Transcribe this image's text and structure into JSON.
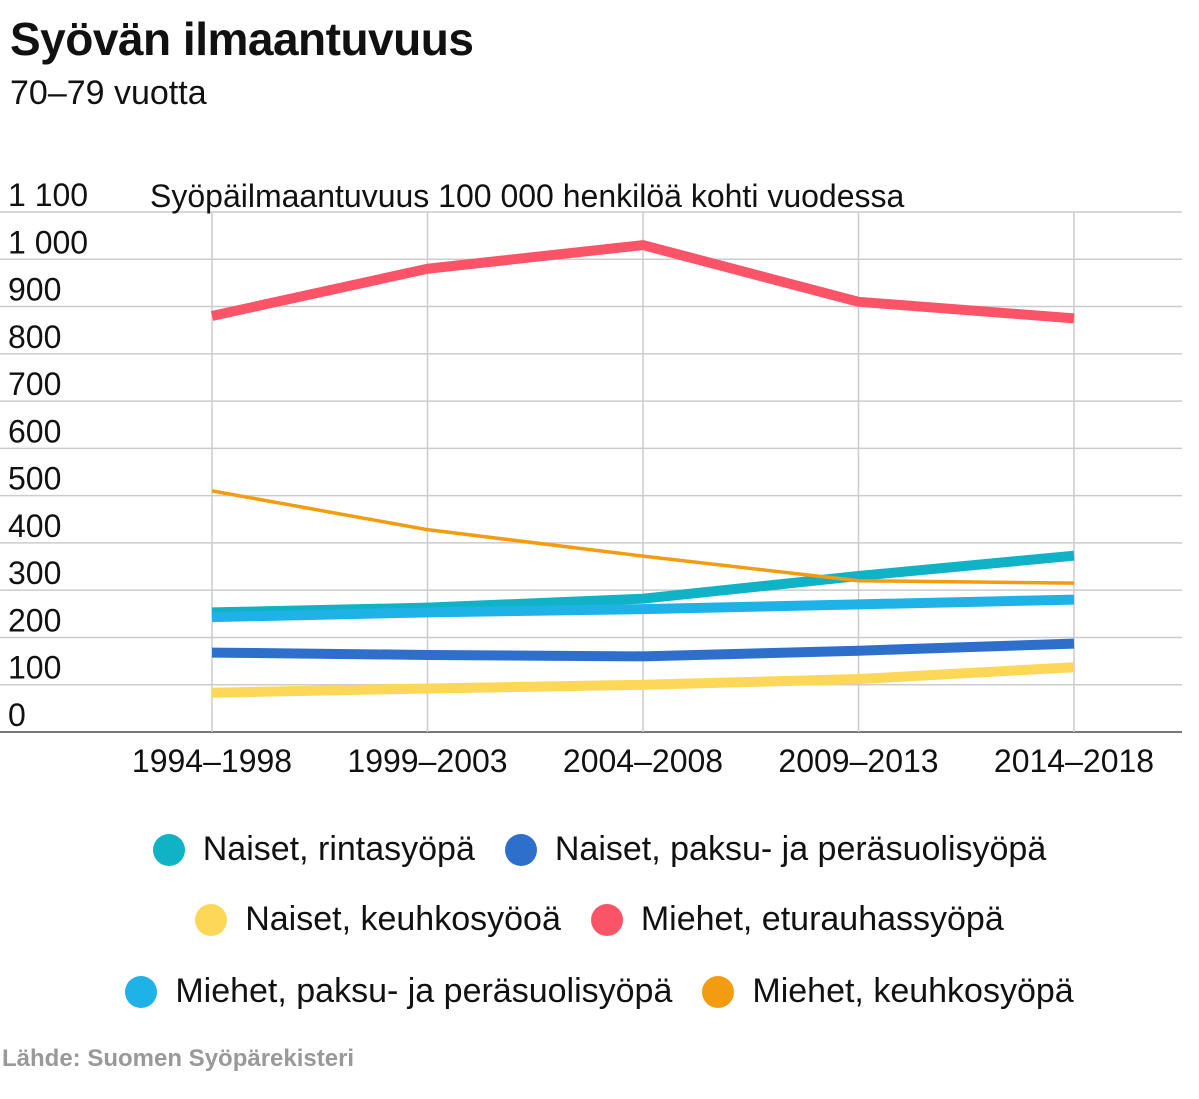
{
  "header": {
    "title": "Syövän ilmaantuvuus",
    "subtitle": "70–79 vuotta"
  },
  "source": "Lähde: Suomen Syöpärekisteri",
  "chart_data": {
    "type": "line",
    "ylabel": "Syöpäilmaantuvuus 100 000 henkilöä kohti vuodessa",
    "xlabel": "",
    "categories": [
      "1994–1998",
      "1999–2003",
      "2004–2008",
      "2009–2013",
      "2014–2018"
    ],
    "ylim": [
      0,
      1100
    ],
    "yticks": [
      0,
      100,
      200,
      300,
      400,
      500,
      600,
      700,
      800,
      900,
      1000,
      1100
    ],
    "ytick_labels": [
      "0",
      "100",
      "200",
      "300",
      "400",
      "500",
      "600",
      "700",
      "800",
      "900",
      "1 000",
      "1 100"
    ],
    "grid": true,
    "legend_position": "bottom",
    "series": [
      {
        "name": "Naiset, rintasyöpä",
        "color": "#10b3c6",
        "width": "thick",
        "values": [
          253,
          263,
          282,
          330,
          373
        ]
      },
      {
        "name": "Naiset, paksu- ja peräsuolisyöpä",
        "color": "#2e6fcc",
        "width": "thick",
        "values": [
          168,
          163,
          160,
          172,
          187
        ]
      },
      {
        "name": "Naiset, keuhkosyöoä",
        "color": "#fdd757",
        "width": "thick",
        "values": [
          83,
          92,
          100,
          112,
          137
        ]
      },
      {
        "name": "Miehet, eturauhassyöpä",
        "color": "#fb5468",
        "width": "thick",
        "values": [
          880,
          980,
          1030,
          910,
          875
        ]
      },
      {
        "name": "Miehet, paksu- ja peräsuolisyöpä",
        "color": "#1fb2e6",
        "width": "thick",
        "values": [
          243,
          253,
          260,
          270,
          280
        ]
      },
      {
        "name": "Miehet, keuhkosyöpä",
        "color": "#f39c12",
        "width": "thin",
        "values": [
          510,
          428,
          372,
          320,
          315
        ]
      }
    ]
  }
}
